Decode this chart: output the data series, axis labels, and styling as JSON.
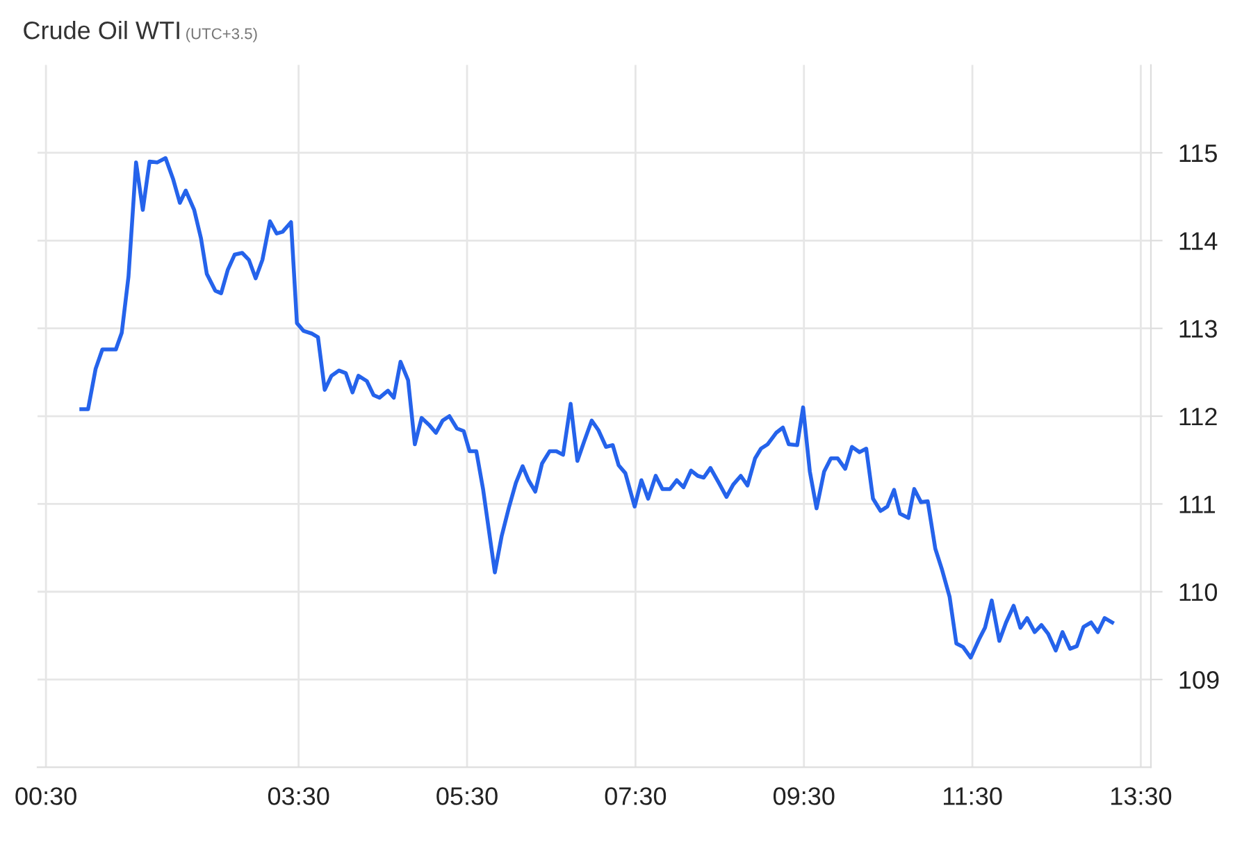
{
  "chart_data": {
    "type": "line",
    "title": "Crude Oil WTI",
    "subtitle": "(UTC+3.5)",
    "x": [
      0.92,
      1.0,
      1.09,
      1.17,
      1.33,
      1.4,
      1.48,
      1.57,
      1.65,
      1.73,
      1.82,
      1.92,
      2.01,
      2.09,
      2.16,
      2.26,
      2.34,
      2.41,
      2.51,
      2.58,
      2.66,
      2.74,
      2.83,
      2.91,
      2.99,
      3.07,
      3.16,
      3.24,
      3.31,
      3.41,
      3.48,
      3.56,
      3.66,
      3.73,
      3.81,
      3.89,
      3.98,
      4.06,
      4.14,
      4.21,
      4.31,
      4.39,
      4.46,
      4.56,
      4.63,
      4.71,
      4.8,
      4.88,
      4.96,
      5.05,
      5.13,
      5.21,
      5.29,
      5.38,
      5.46,
      5.53,
      5.61,
      5.69,
      5.83,
      5.91,
      6.0,
      6.08,
      6.16,
      6.23,
      6.31,
      6.39,
      6.48,
      6.56,
      6.64,
      6.73,
      6.81,
      6.89,
      6.98,
      7.06,
      7.15,
      7.23,
      7.3,
      7.38,
      7.49,
      7.57,
      7.65,
      7.74,
      7.82,
      7.91,
      7.99,
      8.07,
      8.16,
      8.24,
      8.31,
      8.39,
      8.49,
      8.58,
      8.66,
      8.75,
      8.83,
      8.92,
      8.99,
      9.07,
      9.17,
      9.25,
      9.32,
      9.42,
      9.49,
      9.57,
      9.65,
      9.74,
      9.82,
      9.9,
      9.99,
      10.07,
      10.16,
      10.24,
      10.32,
      10.41,
      10.49,
      10.57,
      10.64,
      10.74,
      10.81,
      10.89,
      10.97,
      11.06,
      11.14,
      11.23,
      11.31,
      11.39,
      11.48,
      11.58,
      11.65,
      11.73,
      11.82,
      11.9,
      11.99,
      12.07,
      12.15,
      12.24,
      12.32,
      12.4,
      12.49,
      12.57,
      12.66,
      12.74,
      12.82,
      12.91,
      12.99,
      13.07,
      13.16
    ],
    "series": [
      {
        "color": "#2563eb",
        "values": [
          112.08,
          112.08,
          112.54,
          112.76,
          112.76,
          112.95,
          113.59,
          114.89,
          114.35,
          114.9,
          114.89,
          114.94,
          114.7,
          114.43,
          114.57,
          114.35,
          114.03,
          113.62,
          113.43,
          113.4,
          113.67,
          113.84,
          113.86,
          113.78,
          113.57,
          113.78,
          114.22,
          114.08,
          114.1,
          114.21,
          113.06,
          112.97,
          112.94,
          112.9,
          112.3,
          112.46,
          112.52,
          112.49,
          112.27,
          112.46,
          112.4,
          112.24,
          112.21,
          112.29,
          112.21,
          112.62,
          112.41,
          111.68,
          111.98,
          111.9,
          111.81,
          111.95,
          112.0,
          111.86,
          111.83,
          111.6,
          111.6,
          111.17,
          110.22,
          110.63,
          110.97,
          111.24,
          111.43,
          111.27,
          111.14,
          111.46,
          111.6,
          111.6,
          111.56,
          112.14,
          111.49,
          111.71,
          111.95,
          111.84,
          111.65,
          111.67,
          111.44,
          111.35,
          110.97,
          111.27,
          111.06,
          111.32,
          111.17,
          111.17,
          111.27,
          111.19,
          111.38,
          111.32,
          111.3,
          111.41,
          111.24,
          111.08,
          111.22,
          111.32,
          111.21,
          111.52,
          111.63,
          111.68,
          111.81,
          111.87,
          111.68,
          111.67,
          112.1,
          111.37,
          110.95,
          111.37,
          111.52,
          111.52,
          111.4,
          111.65,
          111.59,
          111.63,
          111.06,
          110.92,
          110.97,
          111.16,
          110.89,
          110.84,
          111.17,
          111.02,
          111.03,
          110.49,
          110.25,
          109.94,
          109.41,
          109.37,
          109.25,
          109.46,
          109.59,
          109.9,
          109.44,
          109.65,
          109.84,
          109.59,
          109.7,
          109.54,
          109.62,
          109.52,
          109.33,
          109.54,
          109.35,
          109.38,
          109.6,
          109.65,
          109.54,
          109.7,
          109.65
        ]
      }
    ],
    "xlim": [
      0.4,
      13.62
    ],
    "xticks": [
      {
        "value": 0.5,
        "label": "00:30"
      },
      {
        "value": 3.5,
        "label": "03:30"
      },
      {
        "value": 5.5,
        "label": "05:30"
      },
      {
        "value": 7.5,
        "label": "07:30"
      },
      {
        "value": 9.5,
        "label": "09:30"
      },
      {
        "value": 11.5,
        "label": "11:30"
      },
      {
        "value": 13.5,
        "label": "13:30"
      }
    ],
    "ylim": [
      108,
      116
    ],
    "yticks": [
      109,
      110,
      111,
      112,
      113,
      114,
      115
    ],
    "grid": true,
    "marker": "none",
    "line_style": "solid",
    "legend": false
  }
}
